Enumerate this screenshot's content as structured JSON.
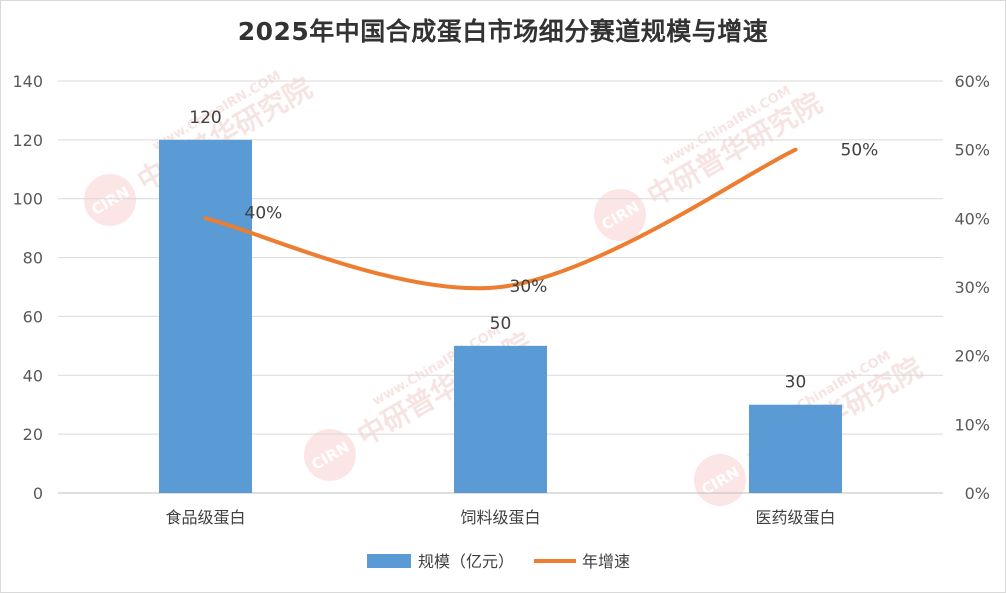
{
  "title": "2025年中国合成蛋白市场细分赛道规模与增速",
  "watermark": {
    "brand": "中研普华研究院",
    "url": "www.ChinaIRN.COM",
    "logo": "CIRN"
  },
  "colors": {
    "bar": "#5b9bd5",
    "line": "#ed7d31",
    "grid": "#d9d9d9",
    "text": "#595959"
  },
  "chart_data": {
    "type": "bar",
    "title": "2025年中国合成蛋白市场细分赛道规模与增速",
    "categories": [
      "食品级蛋白",
      "饲料级蛋白",
      "医药级蛋白"
    ],
    "series": [
      {
        "name": "规模（亿元）",
        "type": "bar",
        "axis": "left",
        "values": [
          120,
          50,
          30
        ],
        "labels": [
          "120",
          "50",
          "30"
        ]
      },
      {
        "name": "年增速",
        "type": "line",
        "smooth": true,
        "axis": "right",
        "values": [
          0.4,
          0.3,
          0.5
        ],
        "labels": [
          "40%",
          "30%",
          "50%"
        ]
      }
    ],
    "y_left": {
      "min": 0,
      "max": 140,
      "step": 20,
      "ticks": [
        "0",
        "20",
        "40",
        "60",
        "80",
        "100",
        "120",
        "140"
      ]
    },
    "y_right": {
      "min": 0,
      "max": 0.6,
      "step": 0.1,
      "ticks": [
        "0%",
        "10%",
        "20%",
        "30%",
        "40%",
        "50%",
        "60%"
      ]
    },
    "grid": true,
    "legend": "bottom"
  }
}
